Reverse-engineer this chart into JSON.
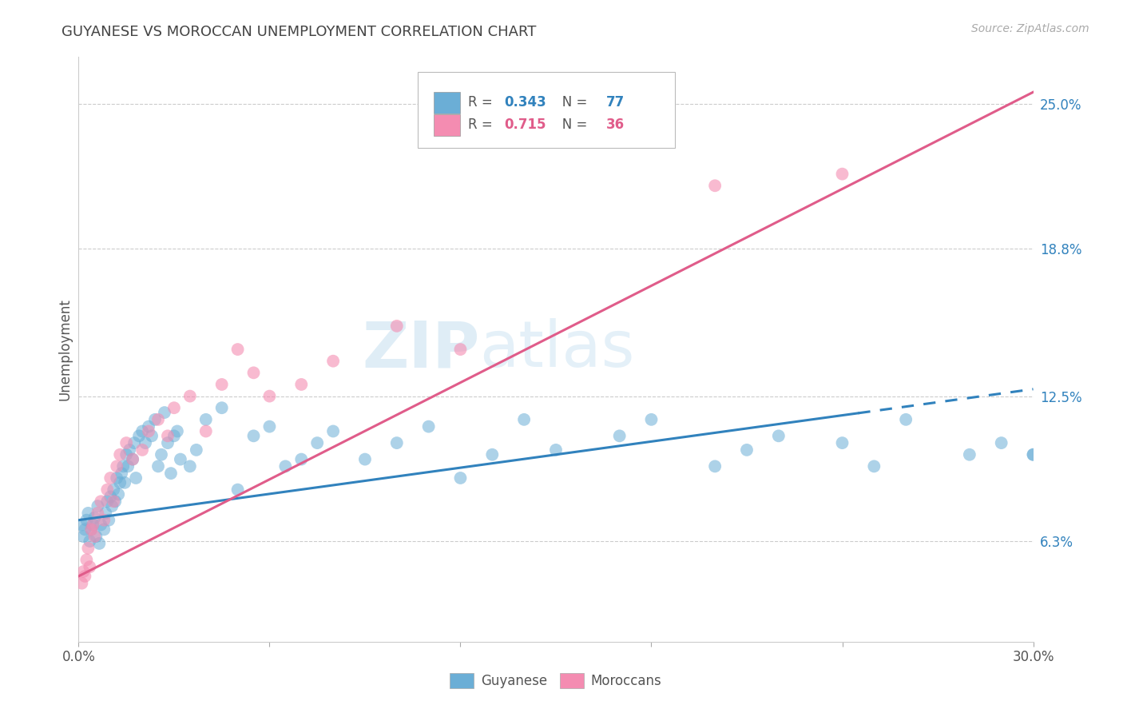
{
  "title": "GUYANESE VS MOROCCAN UNEMPLOYMENT CORRELATION CHART",
  "source": "Source: ZipAtlas.com",
  "ylabel": "Unemployment",
  "ytick_labels": [
    "6.3%",
    "12.5%",
    "18.8%",
    "25.0%"
  ],
  "ytick_values": [
    6.3,
    12.5,
    18.8,
    25.0
  ],
  "xmin": 0.0,
  "xmax": 30.0,
  "ymin": 2.0,
  "ymax": 27.0,
  "R_guyanese": 0.343,
  "N_guyanese": 77,
  "R_moroccan": 0.715,
  "N_moroccan": 36,
  "color_guyanese": "#6baed6",
  "color_moroccan": "#f48cb1",
  "color_line_guyanese": "#3182bd",
  "color_line_moroccan": "#e05c8a",
  "watermark_zip": "ZIP",
  "watermark_atlas": "atlas",
  "background_color": "#ffffff",
  "grid_color": "#cccccc",
  "blue_line_start": 0.0,
  "blue_line_solid_end": 24.5,
  "blue_line_dash_start": 24.5,
  "blue_line_end": 30.0,
  "blue_y_at_0": 7.2,
  "blue_y_at_30": 12.8,
  "pink_y_at_0": 4.8,
  "pink_y_at_30": 25.5,
  "guyanese_x": [
    0.1,
    0.15,
    0.2,
    0.25,
    0.3,
    0.35,
    0.4,
    0.45,
    0.5,
    0.55,
    0.6,
    0.65,
    0.7,
    0.8,
    0.85,
    0.9,
    0.95,
    1.0,
    1.05,
    1.1,
    1.15,
    1.2,
    1.25,
    1.3,
    1.35,
    1.4,
    1.45,
    1.5,
    1.55,
    1.6,
    1.7,
    1.75,
    1.8,
    1.9,
    2.0,
    2.1,
    2.2,
    2.3,
    2.4,
    2.5,
    2.6,
    2.7,
    2.8,
    2.9,
    3.0,
    3.1,
    3.2,
    3.5,
    3.7,
    4.0,
    4.5,
    5.0,
    5.5,
    6.0,
    6.5,
    7.0,
    7.5,
    8.0,
    9.0,
    10.0,
    11.0,
    12.0,
    13.0,
    14.0,
    15.0,
    17.0,
    18.0,
    20.0,
    21.0,
    22.0,
    24.0,
    25.0,
    26.0,
    28.0,
    29.0,
    30.0,
    30.0
  ],
  "guyanese_y": [
    7.0,
    6.5,
    6.8,
    7.2,
    7.5,
    6.3,
    6.8,
    7.0,
    7.3,
    6.5,
    7.8,
    6.2,
    7.0,
    6.8,
    7.5,
    8.0,
    7.2,
    8.2,
    7.8,
    8.5,
    8.0,
    9.0,
    8.3,
    8.8,
    9.2,
    9.5,
    8.8,
    10.0,
    9.5,
    10.2,
    9.8,
    10.5,
    9.0,
    10.8,
    11.0,
    10.5,
    11.2,
    10.8,
    11.5,
    9.5,
    10.0,
    11.8,
    10.5,
    9.2,
    10.8,
    11.0,
    9.8,
    9.5,
    10.2,
    11.5,
    12.0,
    8.5,
    10.8,
    11.2,
    9.5,
    9.8,
    10.5,
    11.0,
    9.8,
    10.5,
    11.2,
    9.0,
    10.0,
    11.5,
    10.2,
    10.8,
    11.5,
    9.5,
    10.2,
    10.8,
    10.5,
    9.5,
    11.5,
    10.0,
    10.5,
    10.0,
    10.0
  ],
  "moroccan_x": [
    0.1,
    0.15,
    0.2,
    0.25,
    0.3,
    0.35,
    0.4,
    0.45,
    0.5,
    0.6,
    0.7,
    0.8,
    0.9,
    1.0,
    1.1,
    1.2,
    1.3,
    1.5,
    1.7,
    2.0,
    2.2,
    2.5,
    2.8,
    3.0,
    3.5,
    4.0,
    4.5,
    5.0,
    5.5,
    6.0,
    7.0,
    8.0,
    10.0,
    12.0,
    20.0,
    24.0
  ],
  "moroccan_y": [
    4.5,
    5.0,
    4.8,
    5.5,
    6.0,
    5.2,
    6.8,
    7.0,
    6.5,
    7.5,
    8.0,
    7.2,
    8.5,
    9.0,
    8.0,
    9.5,
    10.0,
    10.5,
    9.8,
    10.2,
    11.0,
    11.5,
    10.8,
    12.0,
    12.5,
    11.0,
    13.0,
    14.5,
    13.5,
    12.5,
    13.0,
    14.0,
    15.5,
    14.5,
    21.5,
    22.0
  ]
}
